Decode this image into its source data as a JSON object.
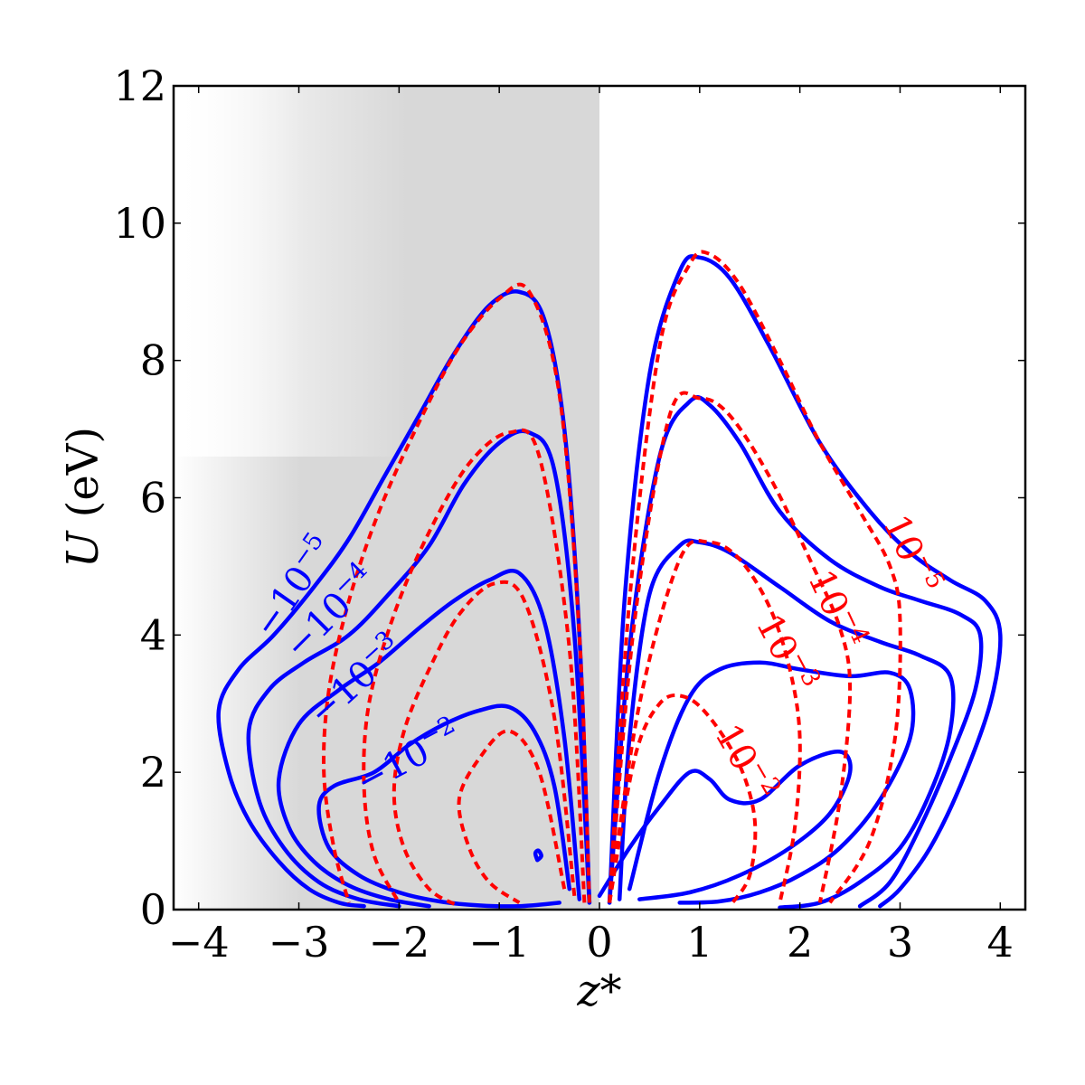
{
  "chart_data": {
    "type": "contour",
    "title": "",
    "xlabel": "z*",
    "ylabel": "U (eV)",
    "xlim": [
      -4.25,
      4.25
    ],
    "ylim": [
      0,
      12
    ],
    "xticks": [
      -4,
      -3,
      -2,
      -1,
      0,
      1,
      2,
      3,
      4
    ],
    "xtick_labels": [
      "−4",
      "−3",
      "−2",
      "−1",
      "0",
      "1",
      "2",
      "3",
      "4"
    ],
    "yticks": [
      0,
      2,
      4,
      6,
      8,
      10,
      12
    ],
    "ytick_labels": [
      "0",
      "2",
      "4",
      "6",
      "8",
      "10",
      "12"
    ],
    "grid": false,
    "shaded_region": {
      "x_range": [
        -4.25,
        0
      ],
      "color": "#d8d8d8",
      "description_fade": "gradient"
    },
    "colors": {
      "solid": "#0000ff",
      "dashed": "#ff0000",
      "frame": "#000000",
      "shade": "#d8d8d8"
    },
    "series": [
      {
        "name": "solid",
        "style": "solid",
        "color": "#0000ff",
        "levels": [
          {
            "label": "−10⁻⁵",
            "label_base": "−10",
            "label_exp": "−5",
            "x": [
              -0.1,
              -0.2,
              -0.35,
              -0.55,
              -0.8,
              -1.1,
              -1.45,
              -1.8,
              -2.15,
              -2.5,
              -2.85,
              -3.25,
              -3.6,
              -3.8,
              -3.7,
              -3.5,
              -3.2,
              -2.9,
              -2.6,
              -2.35
            ],
            "y": [
              0.1,
              4.0,
              7.0,
              8.6,
              9.0,
              8.8,
              8.1,
              7.2,
              6.3,
              5.4,
              4.7,
              4.0,
              3.5,
              2.9,
              2.0,
              1.3,
              0.7,
              0.3,
              0.1,
              0.05
            ]
          },
          {
            "label": "−10⁻⁴",
            "label_base": "−10",
            "label_exp": "−4",
            "x": [
              -0.1,
              -0.25,
              -0.45,
              -0.7,
              -1.0,
              -1.35,
              -1.7,
              -2.1,
              -2.5,
              -2.95,
              -3.3,
              -3.5,
              -3.4,
              -3.15,
              -2.8,
              -2.4,
              -2.0
            ],
            "y": [
              0.1,
              4.0,
              6.4,
              6.95,
              6.8,
              6.2,
              5.3,
              4.6,
              4.0,
              3.6,
              3.2,
              2.6,
              1.6,
              0.9,
              0.4,
              0.15,
              0.05
            ]
          },
          {
            "label": "−10⁻³",
            "label_base": "−10",
            "label_exp": "−3",
            "x": [
              -0.2,
              -0.35,
              -0.55,
              -0.8,
              -1.1,
              -1.45,
              -1.8,
              -2.2,
              -2.6,
              -3.0,
              -3.2,
              -3.1,
              -2.85,
              -2.5,
              -2.1,
              -1.7
            ],
            "y": [
              0.15,
              2.5,
              4.2,
              4.9,
              4.8,
              4.5,
              4.1,
              3.6,
              3.2,
              2.7,
              1.9,
              1.2,
              0.7,
              0.35,
              0.15,
              0.05
            ]
          },
          {
            "label": "−10⁻²",
            "label_base": "−10",
            "label_exp": "−2",
            "x": [
              -0.3,
              -0.45,
              -0.65,
              -0.9,
              -1.2,
              -1.55,
              -1.9,
              -2.25,
              -2.65,
              -2.8,
              -2.7,
              -2.4,
              -2.0,
              -1.6,
              -1.2,
              -0.8,
              -0.4
            ],
            "y": [
              0.3,
              1.8,
              2.6,
              2.95,
              2.9,
              2.7,
              2.4,
              2.0,
              1.8,
              1.5,
              0.9,
              0.5,
              0.25,
              0.12,
              0.06,
              0.05,
              0.1
            ]
          },
          {
            "label": "",
            "label_base": "",
            "label_exp": "",
            "x": [
              0.1,
              0.25,
              0.5,
              0.8,
              1.0,
              1.3,
              1.7,
              2.2,
              2.7,
              3.1,
              3.5,
              3.85,
              4.0,
              3.9,
              3.6,
              3.3,
              3.0,
              2.8
            ],
            "y": [
              0.1,
              4.5,
              7.8,
              9.3,
              9.5,
              9.2,
              8.2,
              6.8,
              5.8,
              5.2,
              4.8,
              4.5,
              4.0,
              3.0,
              1.8,
              0.9,
              0.3,
              0.05
            ]
          },
          {
            "label": "",
            "label_base": "",
            "label_exp": "",
            "x": [
              0.1,
              0.3,
              0.6,
              0.9,
              1.1,
              1.4,
              1.8,
              2.3,
              2.8,
              3.2,
              3.6,
              3.8,
              3.75,
              3.5,
              3.2,
              2.9,
              2.6
            ],
            "y": [
              0.1,
              3.8,
              6.6,
              7.4,
              7.35,
              6.8,
              5.8,
              5.1,
              4.7,
              4.5,
              4.3,
              4.0,
              3.2,
              2.2,
              1.2,
              0.4,
              0.05
            ]
          },
          {
            "label": "",
            "label_base": "",
            "label_exp": "",
            "x": [
              0.2,
              0.3,
              0.5,
              0.8,
              1.0,
              1.3,
              1.8,
              2.3,
              2.8,
              3.2,
              3.5,
              3.5,
              3.3,
              3.0,
              2.6,
              2.2,
              1.8
            ],
            "y": [
              0.15,
              2.5,
              4.6,
              5.3,
              5.35,
              5.2,
              4.7,
              4.2,
              3.9,
              3.7,
              3.4,
              2.6,
              1.7,
              0.9,
              0.4,
              0.1,
              0.03
            ]
          },
          {
            "label": "",
            "label_base": "",
            "label_exp": "",
            "x": [
              0.3,
              0.6,
              0.9,
              1.2,
              1.6,
              2.0,
              2.5,
              2.9,
              3.1,
              3.1,
              2.8,
              2.4,
              2.0,
              1.6,
              1.2,
              0.8
            ],
            "y": [
              0.3,
              2.0,
              3.1,
              3.5,
              3.6,
              3.5,
              3.4,
              3.45,
              3.2,
              2.5,
              1.6,
              0.9,
              0.5,
              0.25,
              0.12,
              0.1
            ]
          },
          {
            "label": "",
            "label_base": "",
            "label_exp": "",
            "x": [
              0.0,
              0.3,
              0.6,
              0.9,
              1.1,
              1.3,
              1.6,
              2.0,
              2.4,
              2.5,
              2.3,
              1.9,
              1.4,
              0.9,
              0.4
            ],
            "y": [
              0.2,
              0.9,
              1.5,
              2.0,
              1.9,
              1.6,
              1.6,
              2.1,
              2.3,
              2.0,
              1.4,
              0.9,
              0.5,
              0.25,
              0.15
            ]
          },
          {
            "label": "",
            "label_base": "",
            "label_exp": "",
            "x": [
              -0.62,
              -0.64,
              -0.61,
              -0.58,
              -0.62
            ],
            "y": [
              0.72,
              0.82,
              0.86,
              0.78,
              0.72
            ]
          }
        ]
      },
      {
        "name": "dashed",
        "style": "dashed",
        "color": "#ff0000",
        "levels": [
          {
            "label": "10⁻⁵",
            "label_base": "10",
            "label_exp": "−5",
            "x": [
              -0.1,
              -0.2,
              -0.4,
              -0.7,
              -1.0,
              -1.4,
              -1.8,
              -2.2,
              -2.5,
              -2.7,
              -2.75,
              -2.65,
              -2.5
            ],
            "y": [
              0.1,
              4.0,
              7.5,
              9.0,
              8.9,
              8.2,
              7.1,
              5.8,
              4.5,
              3.2,
              2.0,
              0.9,
              0.1
            ]
          },
          {
            "label": "10⁻⁴",
            "label_base": "10",
            "label_exp": "−4",
            "x": [
              -0.15,
              -0.3,
              -0.6,
              -0.9,
              -1.3,
              -1.7,
              -2.05,
              -2.3,
              -2.35,
              -2.25,
              -2.0
            ],
            "y": [
              0.1,
              3.8,
              6.6,
              6.95,
              6.5,
              5.5,
              4.3,
              3.0,
              1.8,
              0.8,
              0.1
            ]
          },
          {
            "label": "10⁻³",
            "label_base": "10",
            "label_exp": "−3",
            "x": [
              -0.25,
              -0.45,
              -0.75,
              -1.05,
              -1.4,
              -1.7,
              -1.95,
              -2.05,
              -1.95,
              -1.7,
              -1.4
            ],
            "y": [
              0.2,
              2.8,
              4.5,
              4.75,
              4.3,
              3.5,
              2.6,
              1.7,
              0.9,
              0.3,
              0.05
            ]
          },
          {
            "label": "10⁻²",
            "label_base": "10",
            "label_exp": "−2",
            "x": [
              -0.35,
              -0.6,
              -0.9,
              -1.2,
              -1.4,
              -1.3,
              -1.1,
              -0.8
            ],
            "y": [
              0.3,
              2.0,
              2.6,
              2.2,
              1.6,
              0.9,
              0.4,
              0.1
            ]
          },
          {
            "label": "",
            "label_base": "",
            "label_exp": "",
            "x": [
              0.1,
              0.3,
              0.6,
              0.9,
              1.1,
              1.4,
              1.8,
              2.2,
              2.6,
              2.9,
              3.0,
              2.95,
              2.7,
              2.3
            ],
            "y": [
              0.1,
              4.5,
              8.2,
              9.4,
              9.55,
              9.1,
              8.0,
              6.8,
              5.8,
              5.0,
              4.2,
              2.5,
              1.0,
              0.1
            ]
          },
          {
            "label": "",
            "label_base": "",
            "label_exp": "",
            "x": [
              0.1,
              0.35,
              0.7,
              1.0,
              1.3,
              1.7,
              2.1,
              2.4,
              2.5,
              2.4,
              2.2
            ],
            "y": [
              0.1,
              4.2,
              7.2,
              7.45,
              7.2,
              6.3,
              5.1,
              4.1,
              3.2,
              1.6,
              0.1
            ]
          },
          {
            "label": "",
            "label_base": "",
            "label_exp": "",
            "x": [
              0.1,
              0.4,
              0.8,
              1.1,
              1.4,
              1.7,
              1.9,
              2.0,
              1.95,
              1.8
            ],
            "y": [
              0.1,
              3.0,
              5.1,
              5.35,
              5.1,
              4.4,
              3.5,
              2.5,
              1.2,
              0.1
            ]
          },
          {
            "label": "",
            "label_base": "",
            "label_exp": "",
            "x": [
              0.1,
              0.35,
              0.6,
              0.85,
              1.1,
              1.4,
              1.55,
              1.5,
              1.3
            ],
            "y": [
              0.1,
              2.2,
              3.0,
              3.1,
              2.8,
              2.1,
              1.3,
              0.5,
              0.05
            ]
          }
        ]
      }
    ]
  }
}
